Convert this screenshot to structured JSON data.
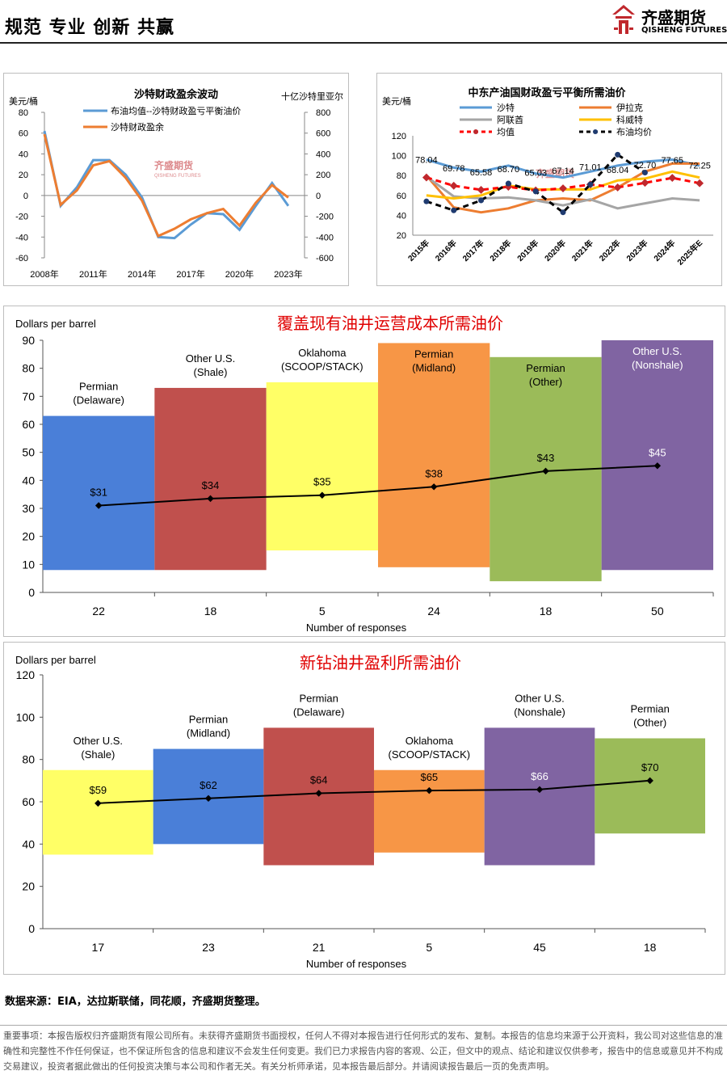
{
  "header": {
    "slogan": "规范 专业 创新 共赢",
    "logo_cn": "齐盛期货",
    "logo_en": "QISHENG FUTURES"
  },
  "colors": {
    "sat_avg": "#5b9bd5",
    "sat_surplus": "#ed7d31",
    "saudi": "#5b9bd5",
    "iraq": "#ed7d31",
    "uae": "#a5a5a5",
    "kuwait": "#ffc000",
    "mean": "#ff0000",
    "brent": "#000000"
  },
  "chart1": {
    "title": "沙特财政盈余波动",
    "ylabel_left": "美元/桶",
    "ylabel_right": "十亿沙特里亚尔",
    "legend": [
      "布油均值--沙特财政盈亏平衡油价",
      "沙特财政盈余"
    ],
    "watermark_cn": "齐盛期货",
    "watermark_en": "QISHENG FUTURES",
    "chart_data": {
      "type": "line",
      "x": [
        2008,
        2009,
        2010,
        2011,
        2012,
        2013,
        2014,
        2015,
        2016,
        2017,
        2018,
        2019,
        2020,
        2021,
        2022,
        2023,
        2024
      ],
      "x_ticks": [
        "2008年",
        "2011年",
        "2014年",
        "2017年",
        "2020年",
        "2023年"
      ],
      "ylim_left": [
        -60,
        80
      ],
      "ylim_right": [
        -600,
        800
      ],
      "yticks_left": [
        "80",
        "60",
        "40",
        "20",
        "0",
        "-20",
        "-40",
        "-60"
      ],
      "yticks_right": [
        "800",
        "600",
        "400",
        "200",
        "0",
        "-200",
        "-400",
        "-600"
      ],
      "series": [
        {
          "name": "布油均值--沙特财政盈亏平衡油价",
          "axis": "left",
          "values": [
            62,
            -10,
            8,
            34,
            34,
            20,
            -2,
            -40,
            -41,
            -28,
            -17,
            -18,
            -33,
            -10,
            12,
            -10,
            null
          ]
        },
        {
          "name": "沙特财政盈余",
          "axis": "right",
          "values": [
            590,
            -90,
            50,
            290,
            330,
            170,
            -50,
            -390,
            -320,
            -230,
            -170,
            -130,
            -290,
            -70,
            100,
            -20,
            null
          ]
        }
      ]
    }
  },
  "chart2": {
    "title": "中东产油国财政盈亏平衡所需油价",
    "ylabel": "美元/桶",
    "legend": [
      "沙特",
      "伊拉克",
      "阿联酋",
      "科威特",
      "均值",
      "布油均价"
    ],
    "watermark": "齐盛期货",
    "chart_data": {
      "type": "line",
      "categories": [
        "2015年",
        "2016年",
        "2017年",
        "2018年",
        "2019年",
        "2020年",
        "2021年",
        "2022年",
        "2023年",
        "2024年",
        "2025年E"
      ],
      "ylim": [
        20,
        120
      ],
      "yticks": [
        "120",
        "100",
        "80",
        "60",
        "40",
        "20"
      ],
      "series": [
        {
          "name": "沙特",
          "values": [
            96,
            88,
            84,
            90,
            82,
            78,
            84,
            90,
            94,
            96,
            90
          ]
        },
        {
          "name": "伊拉克",
          "values": [
            80,
            48,
            43,
            47,
            55,
            57,
            55,
            68,
            84,
            92,
            92
          ]
        },
        {
          "name": "阿联酋",
          "values": [
            79,
            59,
            57,
            58,
            55,
            50,
            56,
            47,
            52,
            57,
            55
          ]
        },
        {
          "name": "科威特",
          "values": [
            60,
            57,
            60,
            70,
            66,
            66,
            66,
            75,
            77,
            84,
            78
          ]
        },
        {
          "name": "均值",
          "values": [
            78.04,
            69.78,
            65.58,
            68.7,
            65.03,
            67.14,
            71.01,
            68.04,
            72.7,
            77.65,
            72.25
          ]
        },
        {
          "name": "布油均价",
          "values": [
            54,
            45,
            55,
            72,
            64,
            43,
            71,
            101,
            83,
            null,
            null
          ]
        }
      ],
      "data_labels": [
        "78.04",
        "69.78",
        "65.58",
        "68.70",
        "65.03",
        "67.14",
        "71.01",
        "68.04",
        "72.70",
        "77.65",
        "72.25"
      ]
    }
  },
  "chart3": {
    "title": "覆盖现有油井运营成本所需油价",
    "ylabel": "Dollars per barrel",
    "xlabel": "Number of responses",
    "chart_data": {
      "type": "bar",
      "ylim": [
        0,
        90
      ],
      "yticks": [
        "90",
        "80",
        "70",
        "60",
        "50",
        "40",
        "30",
        "20",
        "10",
        "0"
      ],
      "bars": [
        {
          "label1": "Permian",
          "label2": "(Delaware)",
          "low": 8,
          "high": 63,
          "color": "#4a7fd8",
          "mean": 31,
          "mean_label": "$31",
          "responses": "22"
        },
        {
          "label1": "Other U.S.",
          "label2": "(Shale)",
          "low": 8,
          "high": 73,
          "color": "#c0504d",
          "mean": 33.5,
          "mean_label": "$34",
          "responses": "18"
        },
        {
          "label1": "Oklahoma",
          "label2": "(SCOOP/STACK)",
          "low": 15,
          "high": 75,
          "color": "#ffff66",
          "mean": 34.7,
          "mean_label": "$35",
          "responses": "5"
        },
        {
          "label1": "Permian",
          "label2": "(Midland)",
          "low": 9,
          "high": 89,
          "color": "#f79646",
          "mean": 37.7,
          "mean_label": "$38",
          "responses": "24"
        },
        {
          "label1": "Permian",
          "label2": "(Other)",
          "low": 4,
          "high": 84,
          "color": "#9bbb59",
          "mean": 43.3,
          "mean_label": "$43",
          "responses": "18"
        },
        {
          "label1": "Other U.S.",
          "label2": "(Nonshale)",
          "low": 8,
          "high": 90,
          "color": "#8064a2",
          "mean": 45.2,
          "mean_label": "$45",
          "responses": "50"
        }
      ]
    }
  },
  "chart4": {
    "title": "新钻油井盈利所需油价",
    "ylabel": "Dollars per barrel",
    "xlabel": "Number of responses",
    "chart_data": {
      "type": "bar",
      "ylim": [
        0,
        120
      ],
      "yticks": [
        "120",
        "100",
        "80",
        "60",
        "40",
        "20",
        "0"
      ],
      "bars": [
        {
          "label1": "Other U.S.",
          "label2": "(Shale)",
          "low": 35,
          "high": 75,
          "color": "#ffff66",
          "mean": 59.3,
          "mean_label": "$59",
          "responses": "17"
        },
        {
          "label1": "Permian",
          "label2": "(Midland)",
          "low": 40,
          "high": 85,
          "color": "#4a7fd8",
          "mean": 61.6,
          "mean_label": "$62",
          "responses": "23"
        },
        {
          "label1": "Permian",
          "label2": "(Delaware)",
          "low": 30,
          "high": 95,
          "color": "#c0504d",
          "mean": 64,
          "mean_label": "$64",
          "responses": "21"
        },
        {
          "label1": "Oklahoma",
          "label2": "(SCOOP/STACK)",
          "low": 36,
          "high": 75,
          "color": "#f79646",
          "mean": 65.3,
          "mean_label": "$65",
          "responses": "5"
        },
        {
          "label1": "Other U.S.",
          "label2": "(Nonshale)",
          "low": 30,
          "high": 95,
          "color": "#8064a2",
          "mean": 65.8,
          "mean_label": "$66",
          "responses": "45"
        },
        {
          "label1": "Permian",
          "label2": "(Other)",
          "low": 45,
          "high": 90,
          "color": "#9bbb59",
          "mean": 70,
          "mean_label": "$70",
          "responses": "18"
        }
      ]
    }
  },
  "source": "数据来源：EIA，达拉斯联储，同花顺，齐盛期货整理。",
  "disclaimer": "重要事项：本报告版权归齐盛期货有限公司所有。未获得齐盛期货书面授权，任何人不得对本报告进行任何形式的发布、复制。本报告的信息均来源于公开资料，我公司对这些信息的准确性和完整性不作任何保证，也不保证所包含的信息和建议不会发生任何变更。我们已力求报告内容的客观、公正，但文中的观点、结论和建议仅供参考，报告中的信息或意见并不构成交易建议，投资者据此做出的任何投资决策与本公司和作者无关。有关分析师承诺，见本报告最后部分。并请阅读报告最后一页的免责声明。"
}
